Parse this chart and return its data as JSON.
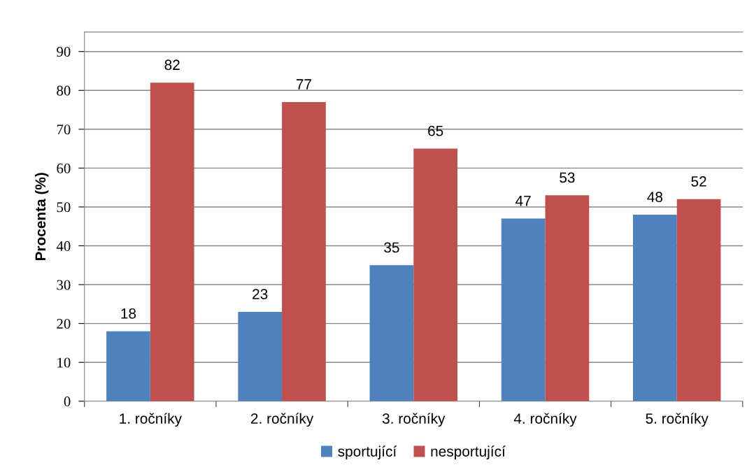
{
  "chart_data": {
    "type": "bar",
    "ylabel": "Procenta (%)",
    "categories": [
      "1. ročníky",
      "2. ročníky",
      "3. ročníky",
      "4. ročníky",
      "5. ročníky"
    ],
    "series": [
      {
        "name": "sportující",
        "color": "#4f81bd",
        "values": [
          18,
          23,
          35,
          47,
          48
        ]
      },
      {
        "name": "nesportující",
        "color": "#c0504d",
        "values": [
          82,
          77,
          65,
          53,
          52
        ]
      }
    ],
    "ylim": [
      0,
      95
    ],
    "yticks": [
      0,
      10,
      20,
      30,
      40,
      50,
      60,
      70,
      80,
      90
    ],
    "grid": "y",
    "legend": "bottom",
    "data_labels": true
  }
}
